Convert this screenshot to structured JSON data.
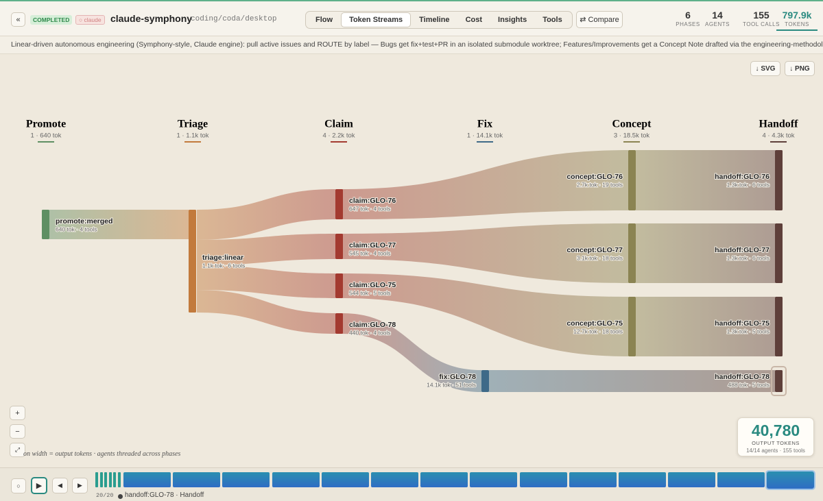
{
  "header": {
    "back": "«",
    "status": "COMPLETED",
    "engine": "○ claude",
    "title": "claude-symphony",
    "path": "coding/coda/desktop",
    "tabs": [
      "Flow",
      "Token Streams",
      "Timeline",
      "Cost",
      "Insights",
      "Tools"
    ],
    "active_tab": 1,
    "compare": "⇄ Compare",
    "stats": [
      {
        "value": "6",
        "label": "PHASES"
      },
      {
        "value": "14",
        "label": "AGENTS"
      },
      {
        "value": "155",
        "label": "TOOL CALLS"
      },
      {
        "value": "797.9k",
        "label": "TOKENS"
      }
    ]
  },
  "description": "Linear-driven autonomous engineering (Symphony-style, Claude engine): pull active issues and ROUTE by label — Bugs get fix+test+PR in an isolated submodule worktree; Features/Improvements get a Concept Note drafted via the engineering-methodology skill. Han...",
  "exports": [
    "↓ SVG",
    "↓ PNG"
  ],
  "phases": [
    {
      "name": "Promote",
      "summary": "1 · 640 tok",
      "color": "#5f8f63"
    },
    {
      "name": "Triage",
      "summary": "1 · 1.1k tok",
      "color": "#c27a3c"
    },
    {
      "name": "Claim",
      "summary": "4 · 2.2k tok",
      "color": "#a33a30"
    },
    {
      "name": "Fix",
      "summary": "1 · 14.1k tok",
      "color": "#3f6a88"
    },
    {
      "name": "Concept",
      "summary": "3 · 18.5k tok",
      "color": "#8b8452"
    },
    {
      "name": "Handoff",
      "summary": "4 · 4.3k tok",
      "color": "#5e3f3a"
    }
  ],
  "nodes": [
    {
      "label": "promote:merged",
      "detail": "640 tok · 4 tools",
      "phase": 0
    },
    {
      "label": "triage:linear",
      "detail": "1.1k tok · 6 tools",
      "phase": 1
    },
    {
      "label": "claim:GLO-76",
      "detail": "647 tok · 4 tools",
      "phase": 2
    },
    {
      "label": "claim:GLO-77",
      "detail": "545 tok · 4 tools",
      "phase": 2
    },
    {
      "label": "claim:GLO-75",
      "detail": "544 tok · 5 tools",
      "phase": 2
    },
    {
      "label": "claim:GLO-78",
      "detail": "440 tok · 4 tools",
      "phase": 2
    },
    {
      "label": "fix:GLO-78",
      "detail": "14.1k tok · 51 tools",
      "phase": 3
    },
    {
      "label": "concept:GLO-76",
      "detail": "2.7k tok · 19 tools",
      "phase": 4
    },
    {
      "label": "concept:GLO-77",
      "detail": "3.1k tok · 18 tools",
      "phase": 4
    },
    {
      "label": "concept:GLO-75",
      "detail": "12.7k tok · 18 tools",
      "phase": 4
    },
    {
      "label": "handoff:GLO-76",
      "detail": "1.3k tok · 6 tools",
      "phase": 5
    },
    {
      "label": "handoff:GLO-77",
      "detail": "1.3k tok · 6 tools",
      "phase": 5
    },
    {
      "label": "handoff:GLO-75",
      "detail": "1.3k tok · 5 tools",
      "phase": 5
    },
    {
      "label": "handoff:GLO-78",
      "detail": "488 tok · 5 tools",
      "phase": 5
    }
  ],
  "zoom": [
    "+",
    "−",
    "⤢"
  ],
  "caption": "on width = output tokens · agents threaded across phases",
  "counter": {
    "value": "40,780",
    "label": "OUTPUT TOKENS",
    "detail": "14/14 agents · 155 tools"
  },
  "player": {
    "buttons": [
      "○",
      "▶",
      "◀",
      "▶"
    ],
    "progress": "20/20",
    "current": "handoff:GLO-78 · Handoff"
  }
}
